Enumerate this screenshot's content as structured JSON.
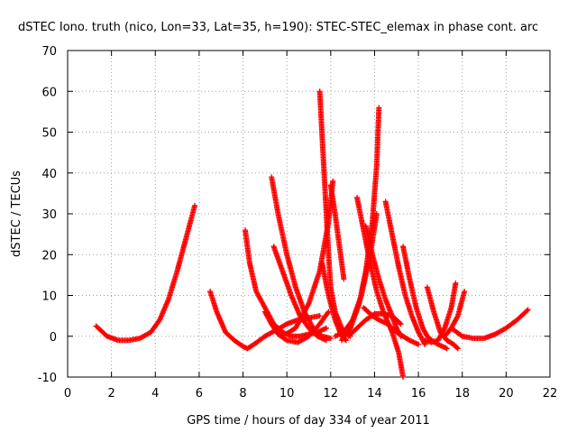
{
  "chart_data": {
    "type": "scatter",
    "title": "dSTEC Iono. truth (nico, Lon=33, Lat=35, h=190): STEC-STEC_elemax in phase cont. arc",
    "xlabel": "GPS time / hours of day 334 of year 2011",
    "ylabel": "dSTEC  / TECUs",
    "xlim": [
      0,
      22
    ],
    "ylim": [
      -10,
      70
    ],
    "xticks": [
      0,
      2,
      4,
      6,
      8,
      10,
      12,
      14,
      16,
      18,
      20,
      22
    ],
    "yticks": [
      -10,
      0,
      10,
      20,
      30,
      40,
      50,
      60,
      70
    ],
    "grid": true,
    "marker": "+",
    "color": "#ff0000",
    "series": [
      {
        "x": [
          1.3,
          1.8,
          2.3,
          2.8,
          3.3,
          3.8,
          4.2,
          4.6,
          5.0,
          5.4,
          5.8
        ],
        "y": [
          2.5,
          0,
          -1,
          -1,
          -0.5,
          1,
          4,
          9,
          16,
          24,
          32
        ]
      },
      {
        "x": [
          6.5,
          6.8,
          7.2,
          7.6,
          8.0,
          8.2,
          8.5,
          9.0,
          9.5,
          10.0,
          10.5,
          11.0,
          11.5
        ],
        "y": [
          11,
          6,
          1,
          -1,
          -2.5,
          -3,
          -2,
          0,
          1.5,
          3,
          4,
          4.5,
          5
        ]
      },
      {
        "x": [
          8.1,
          8.3,
          8.6,
          9.0,
          9.4,
          9.8,
          10.2,
          10.6,
          11.0,
          11.4,
          11.8
        ],
        "y": [
          26,
          18,
          11,
          7,
          3,
          1,
          0,
          0,
          0.5,
          1,
          2
        ]
      },
      {
        "x": [
          9.3,
          9.6,
          10.0,
          10.4,
          10.8,
          11.2,
          11.6,
          12.0
        ],
        "y": [
          39,
          30,
          20,
          12,
          6,
          2,
          0,
          -0.5
        ]
      },
      {
        "x": [
          9.4,
          9.8,
          10.2,
          10.6,
          11.0,
          11.4,
          11.8
        ],
        "y": [
          22,
          16,
          10,
          5,
          2,
          0,
          -1
        ]
      },
      {
        "x": [
          9.0,
          9.3,
          9.6,
          10.0,
          10.5,
          11.0,
          11.5,
          11.9
        ],
        "y": [
          6,
          3,
          0.5,
          -1,
          -1.5,
          0,
          3,
          6
        ]
      },
      {
        "x": [
          9.8,
          10.4,
          11.0,
          11.5,
          11.9,
          12.1
        ],
        "y": [
          0,
          2,
          8,
          16,
          28,
          38
        ]
      },
      {
        "x": [
          11.5,
          11.6,
          11.7,
          11.8,
          11.9,
          12.0,
          12.2,
          12.5,
          12.9
        ],
        "y": [
          60,
          50,
          40,
          30,
          20,
          12,
          6,
          2,
          0
        ]
      },
      {
        "x": [
          11.6,
          11.9,
          12.2,
          12.5,
          12.7
        ],
        "y": [
          18,
          10,
          4,
          0,
          -1
        ]
      },
      {
        "x": [
          12.0,
          12.2,
          12.4,
          12.6
        ],
        "y": [
          37,
          30,
          22,
          14
        ]
      },
      {
        "x": [
          12.2,
          12.6,
          13.0,
          13.4,
          13.8,
          14.1
        ],
        "y": [
          0,
          1,
          4,
          10,
          20,
          30
        ]
      },
      {
        "x": [
          12.5,
          12.9,
          13.3,
          13.6,
          13.9,
          14.1,
          14.2
        ],
        "y": [
          -1,
          2,
          8,
          16,
          28,
          42,
          56
        ]
      },
      {
        "x": [
          13.2,
          13.5,
          13.8,
          14.1,
          14.4,
          14.8,
          15.1,
          15.3
        ],
        "y": [
          34,
          26,
          18,
          11,
          6,
          1,
          -4,
          -10
        ]
      },
      {
        "x": [
          13.6,
          13.9,
          14.2,
          14.5,
          14.8,
          15.0,
          15.2
        ],
        "y": [
          27,
          20,
          14,
          9,
          5,
          2,
          0
        ]
      },
      {
        "x": [
          13.5,
          13.7,
          13.9,
          14.2,
          14.6,
          15.0,
          15.3,
          15.6,
          16.0
        ],
        "y": [
          7,
          6,
          5,
          4,
          3,
          1,
          0,
          -1,
          -2
        ]
      },
      {
        "x": [
          12.8,
          13.2,
          13.6,
          14.0,
          14.4,
          14.8,
          15.2
        ],
        "y": [
          0,
          2,
          4,
          5.5,
          5.5,
          5,
          3
        ]
      },
      {
        "x": [
          14.5,
          14.8,
          15.1,
          15.4,
          15.7,
          16.0,
          16.3
        ],
        "y": [
          33,
          25,
          17,
          10,
          5,
          1,
          -2
        ]
      },
      {
        "x": [
          15.3,
          15.6,
          15.9,
          16.2,
          16.4,
          16.6,
          16.9,
          17.3
        ],
        "y": [
          22,
          14,
          7,
          2,
          0,
          -1,
          -2,
          -3
        ]
      },
      {
        "x": [
          16.3,
          16.6,
          16.9,
          17.2,
          17.5,
          17.7
        ],
        "y": [
          -1,
          -1.5,
          -1,
          2,
          7,
          13
        ]
      },
      {
        "x": [
          16.4,
          16.7,
          17.0,
          17.3,
          17.6,
          17.8
        ],
        "y": [
          12,
          6,
          1,
          -1,
          -2,
          -3
        ]
      },
      {
        "x": [
          17.2,
          17.5,
          17.8,
          18.1
        ],
        "y": [
          0,
          2,
          5,
          11
        ]
      },
      {
        "x": [
          17.5,
          18.0,
          18.5,
          19.0,
          19.5,
          20.0,
          20.5,
          21.0
        ],
        "y": [
          2,
          0,
          -0.5,
          -0.5,
          0.5,
          2,
          4,
          6.5
        ]
      }
    ]
  }
}
